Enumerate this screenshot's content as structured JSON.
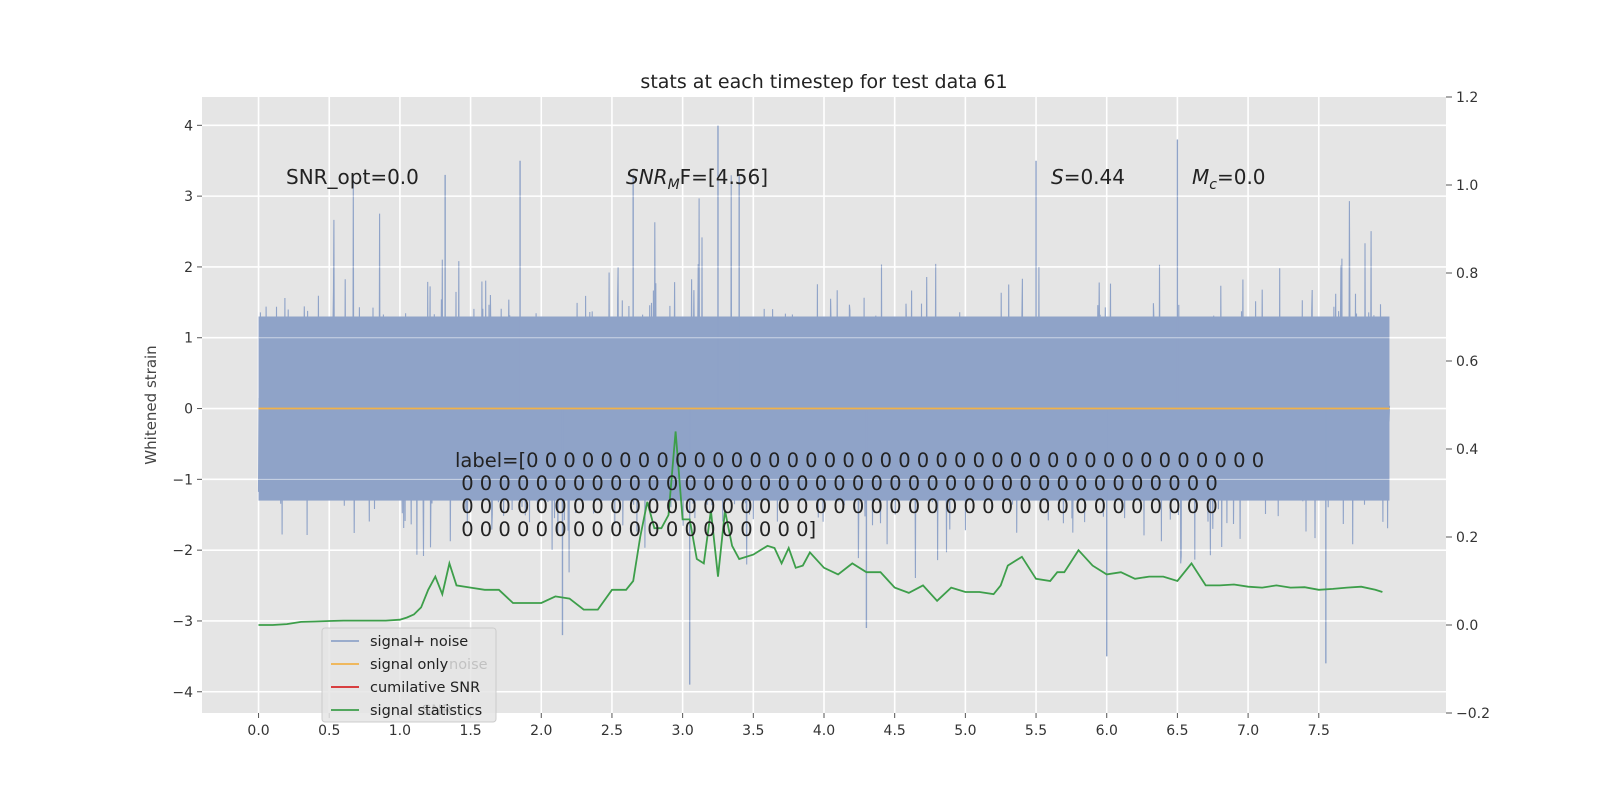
{
  "chart_data": {
    "type": "line",
    "title": "stats at each timestep for test data 61",
    "xlabel": "",
    "ylabel": "Whitened strain",
    "xlim": [
      -0.4,
      8.4
    ],
    "ylim": [
      -4.3,
      4.4
    ],
    "ylim_right": [
      -0.2,
      1.2
    ],
    "xticks": [
      "0.0",
      "0.5",
      "1.0",
      "1.5",
      "2.0",
      "2.5",
      "3.0",
      "3.5",
      "4.0",
      "4.5",
      "5.0",
      "5.5",
      "6.0",
      "6.5",
      "7.0",
      "7.5"
    ],
    "xtick_values": [
      0.0,
      0.5,
      1.0,
      1.5,
      2.0,
      2.5,
      3.0,
      3.5,
      4.0,
      4.5,
      5.0,
      5.5,
      6.0,
      6.5,
      7.0,
      7.5
    ],
    "yticks": [
      "4",
      "3",
      "2",
      "1",
      "0",
      "−1",
      "−2",
      "−3",
      "−4"
    ],
    "ytick_values": [
      4,
      3,
      2,
      1,
      0,
      -1,
      -2,
      -3,
      -4
    ],
    "yticks_right": [
      "1.2",
      "1.0",
      "0.8",
      "0.6",
      "0.4",
      "0.2",
      "0.0",
      "−0.2"
    ],
    "ytick_right_values": [
      1.2,
      1.0,
      0.8,
      0.6,
      0.4,
      0.2,
      0.0,
      -0.2
    ],
    "grid": true,
    "legend_position": "lower-left",
    "colors": {
      "noise": "#8fa3c8",
      "signal": "#f0b24a",
      "cumulative": "#d62728",
      "stats": "#3d9e4a",
      "plot_bg": "#e5e5e5",
      "grid": "#ffffff",
      "text": "#333333"
    },
    "series": [
      {
        "name": "signal+ noise",
        "axis": "left",
        "style": "dense-noise",
        "x_range": [
          0.0,
          8.0
        ],
        "core_band": [
          -1.3,
          1.3
        ],
        "typical_peaks": [
          -2.8,
          2.8
        ],
        "notable_peaks": [
          [
            1.32,
            3.3
          ],
          [
            1.85,
            3.5
          ],
          [
            2.15,
            -3.2
          ],
          [
            2.65,
            3.3
          ],
          [
            3.05,
            -3.9
          ],
          [
            3.25,
            4.0
          ],
          [
            3.4,
            3.3
          ],
          [
            4.3,
            -3.1
          ],
          [
            5.5,
            3.5
          ],
          [
            6.0,
            -3.5
          ],
          [
            6.5,
            3.8
          ],
          [
            7.55,
            -3.6
          ]
        ]
      },
      {
        "name": "signal only",
        "axis": "left",
        "x": [
          0.0,
          8.0
        ],
        "y": [
          0.0,
          0.0
        ]
      },
      {
        "name": "cumilative SNR",
        "axis": "right",
        "x": [],
        "y": []
      },
      {
        "name": "signal statistics",
        "axis": "right",
        "x": [
          0.0,
          0.1,
          0.2,
          0.3,
          0.4,
          0.5,
          0.6,
          0.7,
          0.8,
          0.9,
          1.0,
          1.05,
          1.1,
          1.15,
          1.2,
          1.25,
          1.3,
          1.35,
          1.4,
          1.5,
          1.6,
          1.7,
          1.8,
          1.9,
          2.0,
          2.1,
          2.2,
          2.3,
          2.4,
          2.5,
          2.6,
          2.65,
          2.7,
          2.75,
          2.8,
          2.85,
          2.9,
          2.95,
          3.0,
          3.05,
          3.1,
          3.15,
          3.2,
          3.25,
          3.3,
          3.35,
          3.4,
          3.5,
          3.6,
          3.65,
          3.7,
          3.75,
          3.8,
          3.85,
          3.9,
          4.0,
          4.1,
          4.2,
          4.3,
          4.4,
          4.5,
          4.6,
          4.7,
          4.8,
          4.9,
          5.0,
          5.1,
          5.2,
          5.25,
          5.3,
          5.4,
          5.5,
          5.6,
          5.65,
          5.7,
          5.8,
          5.9,
          6.0,
          6.1,
          6.2,
          6.3,
          6.4,
          6.5,
          6.6,
          6.7,
          6.8,
          6.9,
          7.0,
          7.1,
          7.2,
          7.3,
          7.4,
          7.5,
          7.6,
          7.7,
          7.8,
          7.9,
          7.95
        ],
        "y": [
          0.0,
          0.0,
          0.002,
          0.007,
          0.008,
          0.009,
          0.01,
          0.01,
          0.01,
          0.01,
          0.012,
          0.017,
          0.024,
          0.04,
          0.08,
          0.11,
          0.07,
          0.14,
          0.09,
          0.085,
          0.08,
          0.08,
          0.05,
          0.05,
          0.05,
          0.065,
          0.06,
          0.035,
          0.035,
          0.08,
          0.08,
          0.1,
          0.2,
          0.28,
          0.22,
          0.22,
          0.25,
          0.44,
          0.24,
          0.24,
          0.15,
          0.14,
          0.26,
          0.11,
          0.26,
          0.18,
          0.15,
          0.16,
          0.18,
          0.175,
          0.14,
          0.175,
          0.13,
          0.135,
          0.165,
          0.13,
          0.115,
          0.14,
          0.12,
          0.12,
          0.085,
          0.073,
          0.09,
          0.055,
          0.085,
          0.075,
          0.075,
          0.07,
          0.09,
          0.135,
          0.155,
          0.105,
          0.1,
          0.12,
          0.12,
          0.17,
          0.135,
          0.115,
          0.12,
          0.105,
          0.11,
          0.11,
          0.1,
          0.14,
          0.09,
          0.09,
          0.092,
          0.087,
          0.085,
          0.09,
          0.085,
          0.086,
          0.08,
          0.082,
          0.085,
          0.087,
          0.08,
          0.075
        ]
      }
    ],
    "annotations": {
      "snr_opt": "SNR_opt=0.0",
      "snr_mf_base": "SNR",
      "snr_mf_sub": "M",
      "snr_mf_rest": "F=[4.56]",
      "s_italic": "S",
      "s_rest": "=0.44",
      "mc_base": "M",
      "mc_sub": "c",
      "mc_rest": "=0.0",
      "label_lines": [
        "label=[0 0 0 0 0 0 0 0 0 0 0 0 0 0 0 0 0 0 0 0 0 0 0 0 0 0 0 0 0 0 0 0 0 0 0 0 0 0 0 0",
        " 0 0 0 0 0 0 0 0 0 0 0 0 0 0 0 0 0 0 0 0 0 0 0 0 0 0 0 0 0 0 0 0 0 0 0 0 0 0 0 0 0",
        " 0 0 0 0 0 0 0 0 0 0 0 0 0 0 0 0 0 0 0 0 0 0 0 0 0 0 0 0 0 0 0 0 0 0 0 0 0 0 0 0 0",
        " 0 0 0 0 0 0 0 0 0 0 0 0 0 0 0 0 0 0 0]"
      ]
    },
    "legend": {
      "items": [
        "signal+ noise",
        "signal only",
        "cumilative SNR",
        "signal statistics"
      ],
      "ghost_text": [
        "noise",
        "SNR"
      ]
    }
  }
}
